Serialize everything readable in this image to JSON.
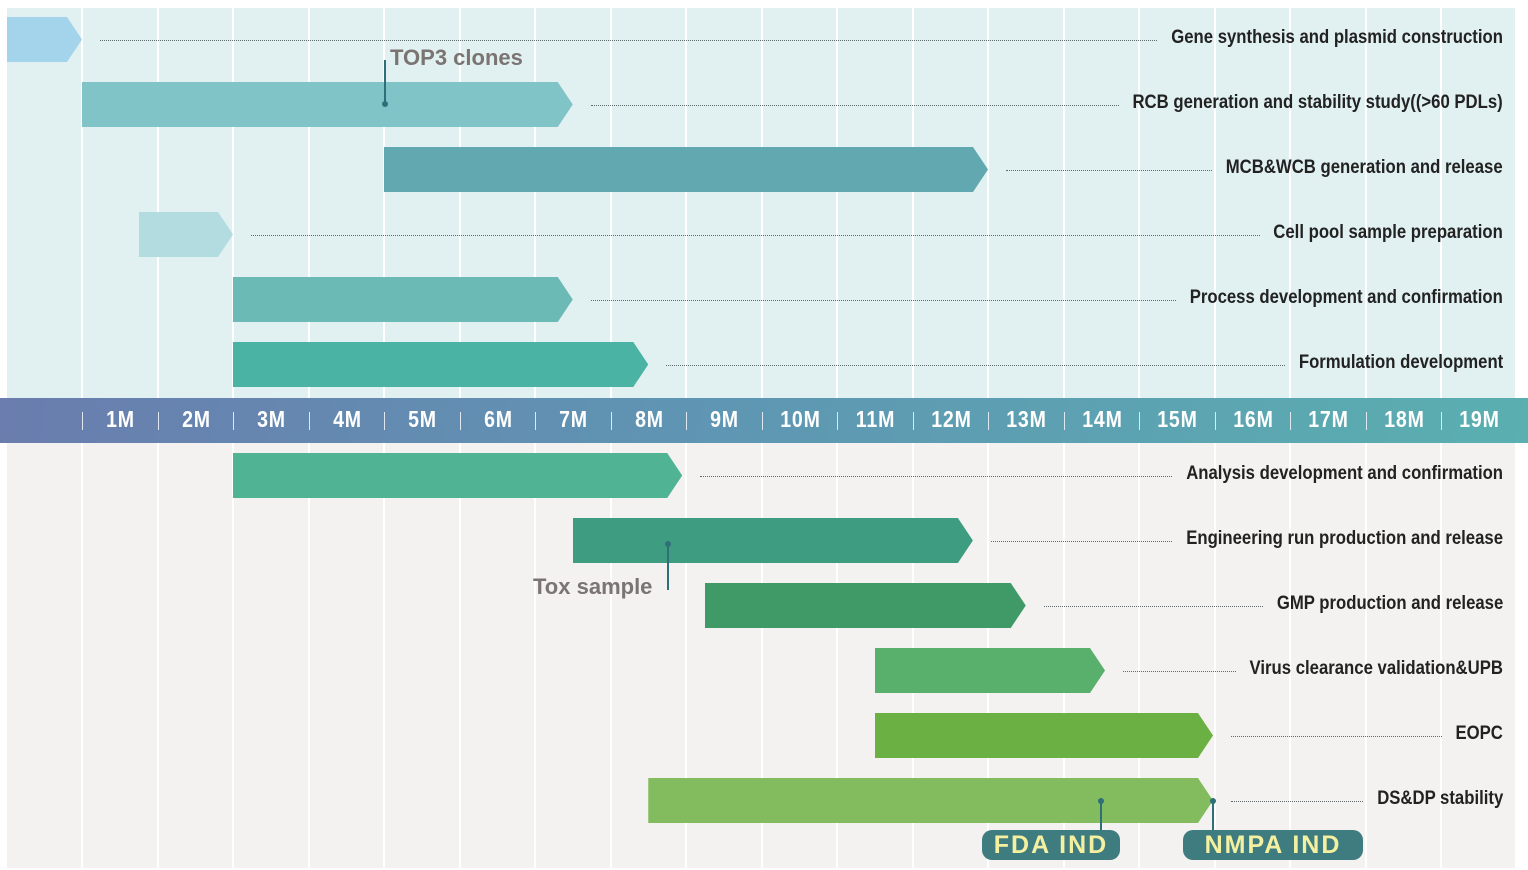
{
  "axis": {
    "months": [
      "1M",
      "2M",
      "3M",
      "4M",
      "5M",
      "6M",
      "7M",
      "8M",
      "9M",
      "10M",
      "11M",
      "12M",
      "13M",
      "14M",
      "15M",
      "16M",
      "17M",
      "18M",
      "19M"
    ]
  },
  "tasks": [
    {
      "label": "Gene synthesis  and  plasmid construction",
      "start": -1,
      "end": 0,
      "color": "#a3d4ec"
    },
    {
      "label": "RCB generation and stability study((>60 PDLs)",
      "start": 0,
      "end": 6.5,
      "color": "#80c4c8"
    },
    {
      "label": "MCB&WCB generation and release",
      "start": 4,
      "end": 12,
      "color": "#62a8b0"
    },
    {
      "label": "Cell pool sample preparation",
      "start": 0.75,
      "end": 2,
      "color": "#b2dce0"
    },
    {
      "label": "Process development and confirmation",
      "start": 2,
      "end": 6.5,
      "color": "#6bbab5"
    },
    {
      "label": "Formulation development",
      "start": 2,
      "end": 7.5,
      "color": "#4ab3a3"
    },
    {
      "label": "Analysis development and confirmation",
      "start": 2,
      "end": 7.95,
      "color": "#50b393"
    },
    {
      "label": "Engineering run production and release",
      "start": 6.5,
      "end": 11.8,
      "color": "#3e9c80"
    },
    {
      "label": "GMP production and release",
      "start": 8.25,
      "end": 12.5,
      "color": "#3f9a68"
    },
    {
      "label": "Virus clearance validation&UPB",
      "start": 10.5,
      "end": 13.55,
      "color": "#58b06c"
    },
    {
      "label": "EOPC",
      "start": 10.5,
      "end": 14.98,
      "color": "#6ab043"
    },
    {
      "label": "DS&DP stability",
      "start": 7.5,
      "end": 14.98,
      "color": "#82bc5e"
    }
  ],
  "annotations": {
    "top3": "TOP3 clones",
    "tox": "Tox sample",
    "fda": "FDA IND",
    "nmpa": "NMPA IND"
  },
  "colors": {
    "top_bg": "#e1f0f0",
    "bottom_bg": "#f3f2f0",
    "badge": "#3e7c80",
    "badge_text": "#f4f0a0"
  }
}
